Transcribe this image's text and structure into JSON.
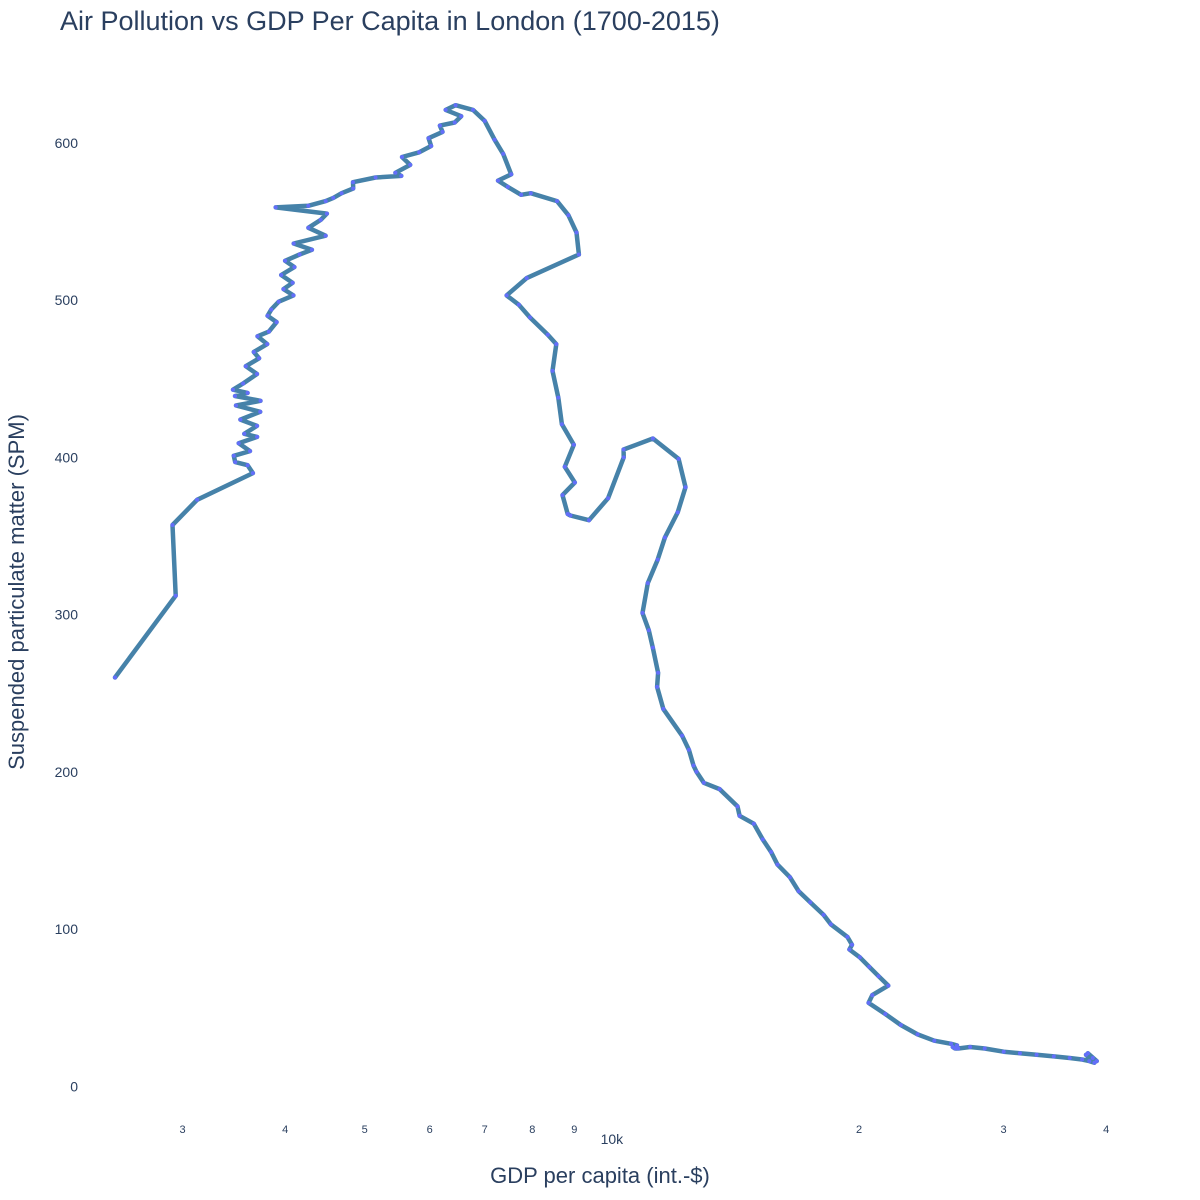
{
  "chart_data": {
    "type": "line",
    "title": "Air Pollution vs GDP Per Capita in London (1700-2015)",
    "xlabel": "GDP per capita (int.-$)",
    "ylabel": "Suspended particulate matter (SPM)",
    "x_scale": "log",
    "xlim": [
      2380,
      41000
    ],
    "ylim": [
      -10,
      640
    ],
    "grid": false,
    "line_color": "#4682a9",
    "marker_color": "#636efa",
    "yticks": [
      {
        "value": 0,
        "label": "0"
      },
      {
        "value": 100,
        "label": "100"
      },
      {
        "value": 200,
        "label": "200"
      },
      {
        "value": 300,
        "label": "300"
      },
      {
        "value": 400,
        "label": "400"
      },
      {
        "value": 500,
        "label": "500"
      },
      {
        "value": 600,
        "label": "600"
      }
    ],
    "xticks": [
      {
        "value": 3000,
        "label": "3",
        "kind": "minor"
      },
      {
        "value": 4000,
        "label": "4",
        "kind": "minor"
      },
      {
        "value": 5000,
        "label": "5",
        "kind": "minor"
      },
      {
        "value": 6000,
        "label": "6",
        "kind": "minor"
      },
      {
        "value": 7000,
        "label": "7",
        "kind": "minor"
      },
      {
        "value": 8000,
        "label": "8",
        "kind": "minor"
      },
      {
        "value": 9000,
        "label": "9",
        "kind": "minor"
      },
      {
        "value": 10000,
        "label": "10k",
        "kind": "major"
      },
      {
        "value": 20000,
        "label": "2",
        "kind": "minor"
      },
      {
        "value": 30000,
        "label": "3",
        "kind": "minor"
      },
      {
        "value": 40000,
        "label": "4",
        "kind": "minor"
      }
    ],
    "series": [
      {
        "x": [
          2482,
          2943,
          2917,
          3125,
          3654,
          3600,
          3477,
          3464,
          3625,
          3512,
          3698,
          3567,
          3697,
          3528,
          3730,
          3485,
          3733,
          3475,
          3600,
          3456,
          3555,
          3697,
          3582,
          3718,
          3664,
          3804,
          3702,
          3822,
          3905,
          3808,
          3847,
          3929,
          4094,
          3982,
          4085,
          3956,
          4105,
          4000,
          4166,
          4312,
          4097,
          4481,
          4270,
          4420,
          4497,
          3896,
          4268,
          4482,
          4578,
          4686,
          4841,
          4838,
          5155,
          5540,
          5450,
          5681,
          5551,
          5825,
          6024,
          5982,
          6219,
          6173,
          6435,
          6553,
          6275,
          6451,
          6775,
          7000,
          7197,
          7373,
          7540,
          7266,
          7468,
          7753,
          7966,
          8573,
          8852,
          9056,
          9118,
          7875,
          7444,
          7705,
          7947,
          8356,
          8558,
          8467,
          8605,
          8692,
          8987,
          8763,
          9012,
          8707,
          8836,
          8901,
          9378,
          9894,
          10337,
          10334,
          11220,
          12058,
          12294,
          12028,
          11603,
          11373,
          11059,
          10897,
          11092,
          11215,
          11385,
          11351,
          11550,
          12176,
          12412,
          12573,
          12677,
          12942,
          13526,
          14224,
          14306,
          14890,
          15264,
          15627,
          15911,
          16476,
          16887,
          17439,
          18109,
          18478,
          19358,
          19612,
          19465,
          20041,
          20580,
          21127,
          21712,
          20760,
          20543,
          21532,
          22487,
          23572,
          24700,
          25891,
          26327,
          26016,
          26183,
          26411,
          27309,
          28452,
          30007,
          31402,
          32906,
          34530,
          36111,
          37389,
          38150,
          38700,
          37800,
          38950,
          38000,
          38520
        ],
        "y": [
          260,
          312,
          357,
          373,
          390,
          395,
          397,
          401,
          404,
          409,
          413,
          415,
          420,
          424,
          429,
          433,
          436,
          439,
          441,
          443,
          447,
          453,
          458,
          463,
          467,
          472,
          477,
          480,
          486,
          490,
          494,
          499,
          503,
          507,
          511,
          516,
          521,
          525,
          529,
          532,
          536,
          541,
          546,
          551,
          555,
          559,
          560,
          563,
          565,
          568,
          571,
          575,
          578,
          579,
          581,
          586,
          591,
          594,
          598,
          603,
          607,
          611,
          613,
          617,
          621,
          624,
          621,
          614,
          602,
          593,
          580,
          576,
          572,
          567,
          568,
          563,
          554,
          543,
          529,
          514,
          503,
          497,
          489,
          478,
          472,
          455,
          438,
          421,
          408,
          394,
          384,
          376,
          364,
          363,
          360,
          374,
          400,
          405,
          412,
          399,
          381,
          365,
          349,
          335,
          320,
          301,
          290,
          279,
          263,
          254,
          240,
          223,
          214,
          204,
          200,
          193,
          189,
          178,
          172,
          167,
          157,
          149,
          141,
          133,
          124,
          117,
          109,
          103,
          95,
          90,
          87,
          82,
          76,
          70,
          64,
          58,
          53,
          46,
          39,
          33,
          29,
          27,
          26,
          25,
          24,
          24,
          25,
          24,
          22,
          21,
          20,
          19,
          18,
          17,
          16,
          15,
          20,
          16,
          21,
          18
        ]
      }
    ]
  }
}
